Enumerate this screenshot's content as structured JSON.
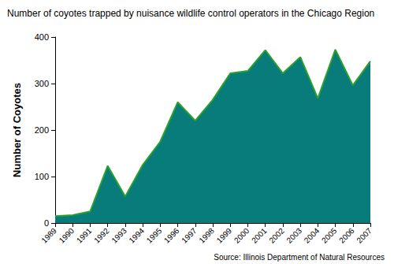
{
  "chart_data": {
    "type": "area",
    "title": "Number of coyotes trapped by nuisance wildlife control operators in the Chicago Region",
    "y_label": "Number of Coyotes",
    "annotations": [
      "Source: Illinois Department of Natural Resources"
    ],
    "categories": [
      "1989",
      "1990",
      "1991",
      "1992",
      "1993",
      "1994",
      "1995",
      "1996",
      "1997",
      "1998",
      "1999",
      "2000",
      "2001",
      "2002",
      "2003",
      "2004",
      "2005",
      "2006",
      "2007"
    ],
    "values": [
      15,
      17,
      25,
      123,
      57,
      125,
      175,
      260,
      220,
      265,
      322,
      327,
      372,
      322,
      357,
      268,
      373,
      296,
      348
    ],
    "color": "#087b7b",
    "ylim": [
      0,
      400
    ],
    "yticks": [
      0,
      100,
      200,
      300,
      400
    ],
    "grid": false
  }
}
